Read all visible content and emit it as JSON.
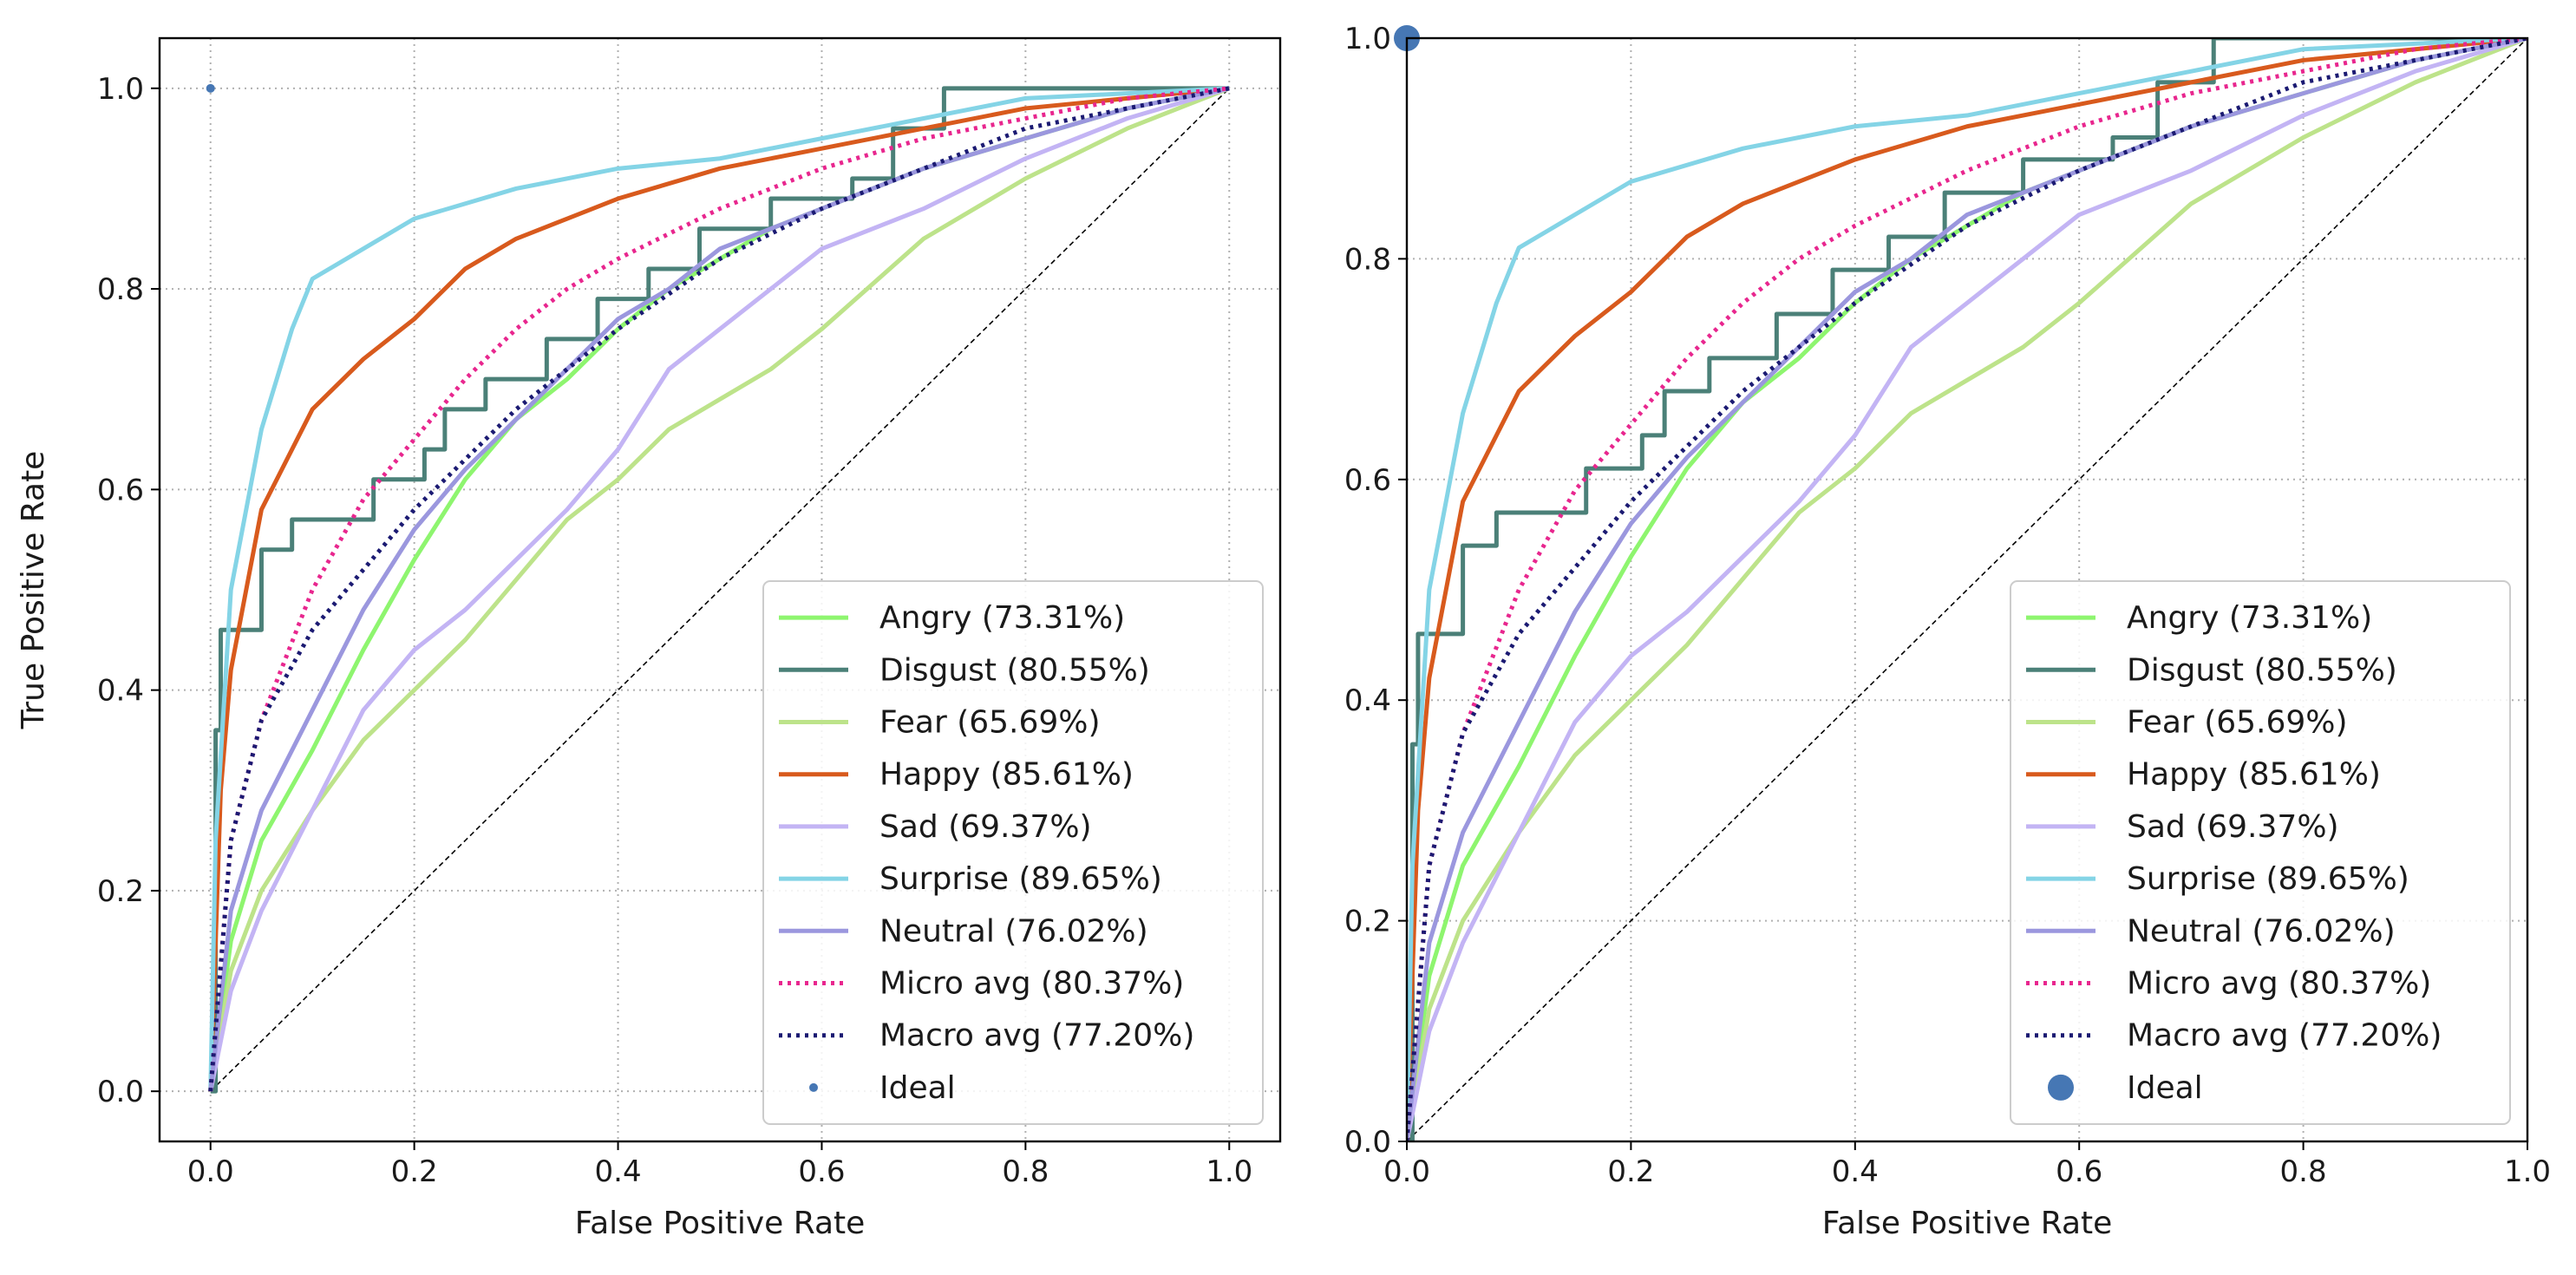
{
  "figure": {
    "colors": {
      "Angry": "#8ef56f",
      "Disgust": "#4b8078",
      "Fear": "#bde38a",
      "Happy": "#d85a1d",
      "Sad": "#c3b4f4",
      "Surprise": "#84d4e6",
      "Neutral": "#9b97de",
      "Micro avg": "#e8268e",
      "Macro avg": "#1b1a72",
      "Ideal": "#4677b4",
      "grid": "#b0b0b0",
      "diagonal": "#000000"
    }
  },
  "chart_data": [
    {
      "type": "line",
      "title": "",
      "xlabel": "False Positive Rate",
      "ylabel": "True Positive Rate",
      "xlim": [
        -0.05,
        1.05
      ],
      "ylim": [
        -0.05,
        1.05
      ],
      "xticks": [
        "0.0",
        "0.2",
        "0.4",
        "0.6",
        "0.8",
        "1.0"
      ],
      "yticks": [
        "0.0",
        "0.2",
        "0.4",
        "0.6",
        "0.8",
        "1.0"
      ],
      "grid": true,
      "legend_position": "lower right",
      "legend": [
        "Angry (73.31%)",
        "Disgust (80.55%)",
        "Fear (65.69%)",
        "Happy (85.61%)",
        "Sad (69.37%)",
        "Surprise (89.65%)",
        "Neutral (76.02%)",
        "Micro avg (80.37%)",
        "Macro avg (77.20%)",
        "Ideal"
      ],
      "diagonal": [
        [
          0,
          0
        ],
        [
          1,
          1
        ]
      ],
      "series": [
        {
          "name": "Angry (73.31%)",
          "style": "solid",
          "color_key": "Angry",
          "x": [
            0,
            0.02,
            0.05,
            0.1,
            0.15,
            0.2,
            0.25,
            0.3,
            0.35,
            0.4,
            0.45,
            0.5,
            0.55,
            0.6,
            0.65,
            0.7,
            0.8,
            0.9,
            1.0
          ],
          "y": [
            0,
            0.15,
            0.25,
            0.34,
            0.44,
            0.53,
            0.61,
            0.67,
            0.71,
            0.76,
            0.8,
            0.83,
            0.86,
            0.88,
            0.9,
            0.92,
            0.95,
            0.98,
            1.0
          ]
        },
        {
          "name": "Disgust (80.55%)",
          "style": "step",
          "color_key": "Disgust",
          "x": [
            0,
            0.005,
            0.01,
            0.05,
            0.08,
            0.16,
            0.21,
            0.23,
            0.27,
            0.33,
            0.38,
            0.43,
            0.48,
            0.55,
            0.58,
            0.63,
            0.67,
            0.72,
            1.0
          ],
          "y": [
            0,
            0.36,
            0.46,
            0.54,
            0.57,
            0.61,
            0.64,
            0.68,
            0.71,
            0.75,
            0.79,
            0.82,
            0.86,
            0.89,
            0.89,
            0.91,
            0.96,
            1.0,
            1.0
          ]
        },
        {
          "name": "Fear (65.69%)",
          "style": "solid",
          "color_key": "Fear",
          "x": [
            0,
            0.02,
            0.05,
            0.1,
            0.15,
            0.2,
            0.25,
            0.3,
            0.35,
            0.4,
            0.45,
            0.5,
            0.55,
            0.6,
            0.7,
            0.8,
            0.9,
            1.0
          ],
          "y": [
            0,
            0.12,
            0.2,
            0.28,
            0.35,
            0.4,
            0.45,
            0.51,
            0.57,
            0.61,
            0.66,
            0.69,
            0.72,
            0.76,
            0.85,
            0.91,
            0.96,
            1.0
          ]
        },
        {
          "name": "Happy (85.61%)",
          "style": "solid",
          "color_key": "Happy",
          "x": [
            0,
            0.01,
            0.02,
            0.05,
            0.08,
            0.1,
            0.15,
            0.2,
            0.25,
            0.3,
            0.35,
            0.4,
            0.5,
            0.6,
            0.7,
            0.8,
            0.9,
            1.0
          ],
          "y": [
            0,
            0.3,
            0.42,
            0.58,
            0.64,
            0.68,
            0.73,
            0.77,
            0.82,
            0.85,
            0.87,
            0.89,
            0.92,
            0.94,
            0.96,
            0.98,
            0.99,
            1.0
          ]
        },
        {
          "name": "Sad (69.37%)",
          "style": "solid",
          "color_key": "Sad",
          "x": [
            0,
            0.02,
            0.05,
            0.1,
            0.15,
            0.2,
            0.25,
            0.3,
            0.35,
            0.4,
            0.45,
            0.5,
            0.55,
            0.6,
            0.7,
            0.8,
            0.9,
            1.0
          ],
          "y": [
            0,
            0.1,
            0.18,
            0.28,
            0.38,
            0.44,
            0.48,
            0.53,
            0.58,
            0.64,
            0.72,
            0.76,
            0.8,
            0.84,
            0.88,
            0.93,
            0.97,
            1.0
          ]
        },
        {
          "name": "Surprise (89.65%)",
          "style": "solid",
          "color_key": "Surprise",
          "x": [
            0,
            0.005,
            0.02,
            0.05,
            0.08,
            0.1,
            0.15,
            0.2,
            0.3,
            0.4,
            0.5,
            0.6,
            0.7,
            0.8,
            0.9,
            1.0
          ],
          "y": [
            0,
            0.25,
            0.5,
            0.66,
            0.76,
            0.81,
            0.84,
            0.87,
            0.9,
            0.92,
            0.93,
            0.95,
            0.97,
            0.99,
            0.995,
            1.0
          ]
        },
        {
          "name": "Neutral (76.02%)",
          "style": "solid",
          "color_key": "Neutral",
          "x": [
            0,
            0.02,
            0.05,
            0.1,
            0.15,
            0.2,
            0.25,
            0.3,
            0.35,
            0.4,
            0.45,
            0.5,
            0.6,
            0.7,
            0.8,
            0.9,
            1.0
          ],
          "y": [
            0,
            0.18,
            0.28,
            0.38,
            0.48,
            0.56,
            0.62,
            0.67,
            0.72,
            0.77,
            0.8,
            0.84,
            0.88,
            0.92,
            0.95,
            0.98,
            1.0
          ]
        },
        {
          "name": "Micro avg (80.37%)",
          "style": "dotted",
          "color_key": "Micro avg",
          "x": [
            0,
            0.02,
            0.05,
            0.1,
            0.15,
            0.2,
            0.25,
            0.3,
            0.35,
            0.4,
            0.5,
            0.6,
            0.7,
            0.8,
            0.9,
            1.0
          ],
          "y": [
            0,
            0.25,
            0.37,
            0.5,
            0.59,
            0.65,
            0.71,
            0.76,
            0.8,
            0.83,
            0.88,
            0.92,
            0.95,
            0.97,
            0.99,
            1.0
          ]
        },
        {
          "name": "Macro avg (77.20%)",
          "style": "dotted",
          "color_key": "Macro avg",
          "x": [
            0,
            0.02,
            0.05,
            0.1,
            0.15,
            0.2,
            0.25,
            0.3,
            0.35,
            0.4,
            0.5,
            0.6,
            0.7,
            0.8,
            0.9,
            1.0
          ],
          "y": [
            0,
            0.25,
            0.37,
            0.46,
            0.52,
            0.58,
            0.63,
            0.68,
            0.72,
            0.76,
            0.83,
            0.88,
            0.92,
            0.96,
            0.98,
            1.0
          ]
        },
        {
          "name": "Ideal",
          "style": "point",
          "marker_size": "small",
          "color_key": "Ideal",
          "x": [
            0
          ],
          "y": [
            1
          ]
        }
      ]
    },
    {
      "type": "line",
      "title": "",
      "xlabel": "False Positive Rate",
      "ylabel": "",
      "xlim": [
        0.0,
        1.0
      ],
      "ylim": [
        0.0,
        1.0
      ],
      "xticks": [
        "0.0",
        "0.2",
        "0.4",
        "0.6",
        "0.8",
        "1.0"
      ],
      "yticks": [
        "0.0",
        "0.2",
        "0.4",
        "0.6",
        "0.8",
        "1.0"
      ],
      "grid": true,
      "legend_position": "lower right",
      "legend": [
        "Angry (73.31%)",
        "Disgust (80.55%)",
        "Fear (65.69%)",
        "Happy (85.61%)",
        "Sad (69.37%)",
        "Surprise (89.65%)",
        "Neutral (76.02%)",
        "Micro avg (80.37%)",
        "Macro avg (77.20%)",
        "Ideal"
      ],
      "diagonal": [
        [
          0,
          0
        ],
        [
          1,
          1
        ]
      ],
      "series": [
        {
          "name": "Angry (73.31%)",
          "style": "solid",
          "color_key": "Angry",
          "x": [
            0,
            0.02,
            0.05,
            0.1,
            0.15,
            0.2,
            0.25,
            0.3,
            0.35,
            0.4,
            0.45,
            0.5,
            0.55,
            0.6,
            0.65,
            0.7,
            0.8,
            0.9,
            1.0
          ],
          "y": [
            0,
            0.15,
            0.25,
            0.34,
            0.44,
            0.53,
            0.61,
            0.67,
            0.71,
            0.76,
            0.8,
            0.83,
            0.86,
            0.88,
            0.9,
            0.92,
            0.95,
            0.98,
            1.0
          ]
        },
        {
          "name": "Disgust (80.55%)",
          "style": "step",
          "color_key": "Disgust",
          "x": [
            0,
            0.005,
            0.01,
            0.05,
            0.08,
            0.16,
            0.21,
            0.23,
            0.27,
            0.33,
            0.38,
            0.43,
            0.48,
            0.55,
            0.58,
            0.63,
            0.67,
            0.72,
            1.0
          ],
          "y": [
            0,
            0.36,
            0.46,
            0.54,
            0.57,
            0.61,
            0.64,
            0.68,
            0.71,
            0.75,
            0.79,
            0.82,
            0.86,
            0.89,
            0.89,
            0.91,
            0.96,
            1.0,
            1.0
          ]
        },
        {
          "name": "Fear (65.69%)",
          "style": "solid",
          "color_key": "Fear",
          "x": [
            0,
            0.02,
            0.05,
            0.1,
            0.15,
            0.2,
            0.25,
            0.3,
            0.35,
            0.4,
            0.45,
            0.5,
            0.55,
            0.6,
            0.7,
            0.8,
            0.9,
            1.0
          ],
          "y": [
            0,
            0.12,
            0.2,
            0.28,
            0.35,
            0.4,
            0.45,
            0.51,
            0.57,
            0.61,
            0.66,
            0.69,
            0.72,
            0.76,
            0.85,
            0.91,
            0.96,
            1.0
          ]
        },
        {
          "name": "Happy (85.61%)",
          "style": "solid",
          "color_key": "Happy",
          "x": [
            0,
            0.01,
            0.02,
            0.05,
            0.08,
            0.1,
            0.15,
            0.2,
            0.25,
            0.3,
            0.35,
            0.4,
            0.5,
            0.6,
            0.7,
            0.8,
            0.9,
            1.0
          ],
          "y": [
            0,
            0.3,
            0.42,
            0.58,
            0.64,
            0.68,
            0.73,
            0.77,
            0.82,
            0.85,
            0.87,
            0.89,
            0.92,
            0.94,
            0.96,
            0.98,
            0.99,
            1.0
          ]
        },
        {
          "name": "Sad (69.37%)",
          "style": "solid",
          "color_key": "Sad",
          "x": [
            0,
            0.02,
            0.05,
            0.1,
            0.15,
            0.2,
            0.25,
            0.3,
            0.35,
            0.4,
            0.45,
            0.5,
            0.55,
            0.6,
            0.7,
            0.8,
            0.9,
            1.0
          ],
          "y": [
            0,
            0.1,
            0.18,
            0.28,
            0.38,
            0.44,
            0.48,
            0.53,
            0.58,
            0.64,
            0.72,
            0.76,
            0.8,
            0.84,
            0.88,
            0.93,
            0.97,
            1.0
          ]
        },
        {
          "name": "Surprise (89.65%)",
          "style": "solid",
          "color_key": "Surprise",
          "x": [
            0,
            0.005,
            0.02,
            0.05,
            0.08,
            0.1,
            0.15,
            0.2,
            0.3,
            0.4,
            0.5,
            0.6,
            0.7,
            0.8,
            0.9,
            1.0
          ],
          "y": [
            0,
            0.25,
            0.5,
            0.66,
            0.76,
            0.81,
            0.84,
            0.87,
            0.9,
            0.92,
            0.93,
            0.95,
            0.97,
            0.99,
            0.995,
            1.0
          ]
        },
        {
          "name": "Neutral (76.02%)",
          "style": "solid",
          "color_key": "Neutral",
          "x": [
            0,
            0.02,
            0.05,
            0.1,
            0.15,
            0.2,
            0.25,
            0.3,
            0.35,
            0.4,
            0.45,
            0.5,
            0.6,
            0.7,
            0.8,
            0.9,
            1.0
          ],
          "y": [
            0,
            0.18,
            0.28,
            0.38,
            0.48,
            0.56,
            0.62,
            0.67,
            0.72,
            0.77,
            0.8,
            0.84,
            0.88,
            0.92,
            0.95,
            0.98,
            1.0
          ]
        },
        {
          "name": "Micro avg (80.37%)",
          "style": "dotted",
          "color_key": "Micro avg",
          "x": [
            0,
            0.02,
            0.05,
            0.1,
            0.15,
            0.2,
            0.25,
            0.3,
            0.35,
            0.4,
            0.5,
            0.6,
            0.7,
            0.8,
            0.9,
            1.0
          ],
          "y": [
            0,
            0.25,
            0.37,
            0.5,
            0.59,
            0.65,
            0.71,
            0.76,
            0.8,
            0.83,
            0.88,
            0.92,
            0.95,
            0.97,
            0.99,
            1.0
          ]
        },
        {
          "name": "Macro avg (77.20%)",
          "style": "dotted",
          "color_key": "Macro avg",
          "x": [
            0,
            0.02,
            0.05,
            0.1,
            0.15,
            0.2,
            0.25,
            0.3,
            0.35,
            0.4,
            0.5,
            0.6,
            0.7,
            0.8,
            0.9,
            1.0
          ],
          "y": [
            0,
            0.25,
            0.37,
            0.46,
            0.52,
            0.58,
            0.63,
            0.68,
            0.72,
            0.76,
            0.83,
            0.88,
            0.92,
            0.96,
            0.98,
            1.0
          ]
        },
        {
          "name": "Ideal",
          "style": "point",
          "marker_size": "large",
          "color_key": "Ideal",
          "x": [
            0
          ],
          "y": [
            1
          ]
        }
      ]
    }
  ]
}
